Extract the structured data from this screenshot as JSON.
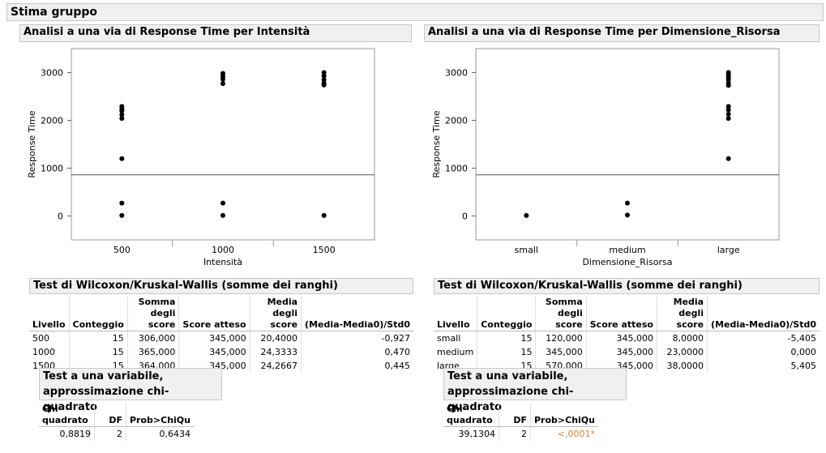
{
  "report_title": "Stima gruppo",
  "panels": [
    {
      "title": "Analisi a una via di Response Time per Intensità",
      "wilcoxon": {
        "title": "Test di Wilcoxon/Kruskal-Wallis (somme dei ranghi)",
        "headers": [
          "Livello",
          "Conteggio",
          "Somma degli score",
          "Score atteso",
          "Media degli score",
          "(Media-Media0)/Std0"
        ],
        "rows": [
          [
            "500",
            "15",
            "306,000",
            "345,000",
            "20,4000",
            "-0,927"
          ],
          [
            "1000",
            "15",
            "365,000",
            "345,000",
            "24,3333",
            "0,470"
          ],
          [
            "1500",
            "15",
            "364,000",
            "345,000",
            "24,2667",
            "0,445"
          ]
        ]
      },
      "chisq": {
        "title_line1": "Test a una variabile,",
        "title_line2": "approssimazione chi-quadrato",
        "headers": [
          "Chi-quadrato",
          "DF",
          "Prob>ChiQu"
        ],
        "values": [
          "0,8819",
          "2",
          "0,6434"
        ]
      }
    },
    {
      "title": "Analisi a una via di Response Time per Dimensione_Risorsa",
      "wilcoxon": {
        "title": "Test di Wilcoxon/Kruskal-Wallis (somme dei ranghi)",
        "headers": [
          "Livello",
          "Conteggio",
          "Somma degli score",
          "Score atteso",
          "Media degli score",
          "(Media-Media0)/Std0"
        ],
        "rows": [
          [
            "small",
            "15",
            "120,000",
            "345,000",
            "8,0000",
            "-5,405"
          ],
          [
            "medium",
            "15",
            "345,000",
            "345,000",
            "23,0000",
            "0,000"
          ],
          [
            "large",
            "15",
            "570,000",
            "345,000",
            "38,0000",
            "5,405"
          ]
        ]
      },
      "chisq": {
        "title_line1": "Test a una variabile,",
        "title_line2": "approssimazione chi-quadrato",
        "headers": [
          "Chi-quadrato",
          "DF",
          "Prob>ChiQu"
        ],
        "values": [
          "39,1304",
          "2",
          "<,0001*"
        ]
      }
    }
  ],
  "chart_data": [
    {
      "type": "scatter",
      "xlabel": "Intensità",
      "ylabel": "Response Time",
      "categories": [
        "500",
        "1000",
        "1500"
      ],
      "yticks": [
        0,
        1000,
        2000,
        3000
      ],
      "ylim": [
        -500,
        3500
      ],
      "grand_mean": 860,
      "points": [
        {
          "x": "500",
          "y": 2290
        },
        {
          "x": "500",
          "y": 2240
        },
        {
          "x": "500",
          "y": 2200
        },
        {
          "x": "500",
          "y": 2120
        },
        {
          "x": "500",
          "y": 2040
        },
        {
          "x": "500",
          "y": 1200
        },
        {
          "x": "500",
          "y": 270
        },
        {
          "x": "500",
          "y": 10
        },
        {
          "x": "1000",
          "y": 2980
        },
        {
          "x": "1000",
          "y": 2920
        },
        {
          "x": "1000",
          "y": 2860
        },
        {
          "x": "1000",
          "y": 2770
        },
        {
          "x": "1000",
          "y": 270
        },
        {
          "x": "1000",
          "y": 10
        },
        {
          "x": "1500",
          "y": 3000
        },
        {
          "x": "1500",
          "y": 2930
        },
        {
          "x": "1500",
          "y": 2850
        },
        {
          "x": "1500",
          "y": 2780
        },
        {
          "x": "1500",
          "y": 2740
        },
        {
          "x": "1500",
          "y": 10
        }
      ]
    },
    {
      "type": "scatter",
      "xlabel": "Dimensione_Risorsa",
      "ylabel": "Response Time",
      "categories": [
        "small",
        "medium",
        "large"
      ],
      "yticks": [
        0,
        1000,
        2000,
        3000
      ],
      "ylim": [
        -500,
        3500
      ],
      "grand_mean": 860,
      "points": [
        {
          "x": "small",
          "y": 10
        },
        {
          "x": "medium",
          "y": 270
        },
        {
          "x": "medium",
          "y": 20
        },
        {
          "x": "large",
          "y": 3000
        },
        {
          "x": "large",
          "y": 2950
        },
        {
          "x": "large",
          "y": 2900
        },
        {
          "x": "large",
          "y": 2850
        },
        {
          "x": "large",
          "y": 2780
        },
        {
          "x": "large",
          "y": 2730
        },
        {
          "x": "large",
          "y": 2290
        },
        {
          "x": "large",
          "y": 2220
        },
        {
          "x": "large",
          "y": 2130
        },
        {
          "x": "large",
          "y": 2040
        },
        {
          "x": "large",
          "y": 1200
        }
      ]
    }
  ]
}
